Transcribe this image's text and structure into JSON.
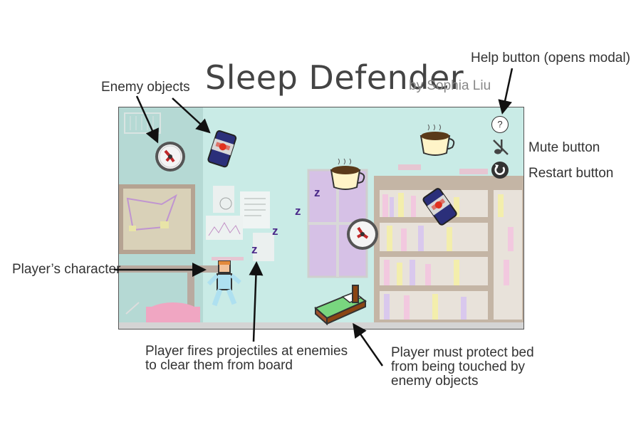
{
  "header": {
    "title": "Sleep Defender",
    "byline": "by Sophia Liu"
  },
  "annotations": {
    "enemy_objects": "Enemy objects",
    "help_button": "Help button (opens modal)",
    "mute_button": "Mute button",
    "restart_button": "Restart button",
    "players_character": "Player’s character",
    "projectiles_line1": "Player fires projectiles at enemies",
    "projectiles_line2": "to clear them from board",
    "bed_line1": "Player must protect bed",
    "bed_line2": "from being touched by",
    "bed_line3": "enemy objects"
  },
  "game": {
    "help_symbol": "?",
    "projectile_letter": "z",
    "colors": {
      "wall": "#c9ebe6",
      "shelf": "#c4b5a5",
      "projectile": "#4b2a8a",
      "bed_blanket": "#79d67f"
    }
  },
  "icons": [
    "help-icon",
    "mute-icon",
    "restart-icon",
    "alarm-clock-icon",
    "energy-drink-can-icon",
    "coffee-cup-icon",
    "bed-icon"
  ]
}
